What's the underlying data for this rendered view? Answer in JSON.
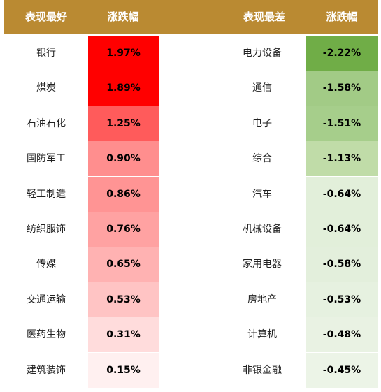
{
  "chart_data": {
    "type": "table",
    "headers": {
      "best_name": "表现最好",
      "best_change": "涨跌幅",
      "worst_name": "表现最差",
      "worst_change": "涨跌幅"
    },
    "best": [
      {
        "name": "银行",
        "change": "1.97%",
        "value": 1.97
      },
      {
        "name": "煤炭",
        "change": "1.89%",
        "value": 1.89
      },
      {
        "name": "石油石化",
        "change": "1.25%",
        "value": 1.25
      },
      {
        "name": "国防军工",
        "change": "0.90%",
        "value": 0.9
      },
      {
        "name": "轻工制造",
        "change": "0.86%",
        "value": 0.86
      },
      {
        "name": "纺织服饰",
        "change": "0.76%",
        "value": 0.76
      },
      {
        "name": "传媒",
        "change": "0.65%",
        "value": 0.65
      },
      {
        "name": "交通运输",
        "change": "0.53%",
        "value": 0.53
      },
      {
        "name": "医药生物",
        "change": "0.31%",
        "value": 0.31
      },
      {
        "name": "建筑装饰",
        "change": "0.15%",
        "value": 0.15
      }
    ],
    "worst": [
      {
        "name": "电力设备",
        "change": "-2.22%",
        "value": -2.22
      },
      {
        "name": "通信",
        "change": "-1.58%",
        "value": -1.58
      },
      {
        "name": "电子",
        "change": "-1.51%",
        "value": -1.51
      },
      {
        "name": "综合",
        "change": "-1.13%",
        "value": -1.13
      },
      {
        "name": "汽车",
        "change": "-0.64%",
        "value": -0.64
      },
      {
        "name": "机械设备",
        "change": "-0.64%",
        "value": -0.64
      },
      {
        "name": "家用电器",
        "change": "-0.58%",
        "value": -0.58
      },
      {
        "name": "房地产",
        "change": "-0.53%",
        "value": -0.53
      },
      {
        "name": "计算机",
        "change": "-0.48%",
        "value": -0.48
      },
      {
        "name": "非银金融",
        "change": "-0.45%",
        "value": -0.45
      }
    ]
  },
  "colors": {
    "header_bg": "#BA8A32",
    "best_cells": [
      "#FF0000",
      "#FF0000",
      "#FF5B5B",
      "#FF8E8E",
      "#FF9494",
      "#FFA2A2",
      "#FFB2B2",
      "#FFC4C4",
      "#FFDCDC",
      "#FFF0F0"
    ],
    "worst_cells": [
      "#70AD47",
      "#A2CB86",
      "#A6CE8B",
      "#C0DCA8",
      "#E2EFDA",
      "#E2EFDA",
      "#E3EFDC",
      "#E6F1E0",
      "#E9F2E3",
      "#ECF4E7"
    ]
  }
}
